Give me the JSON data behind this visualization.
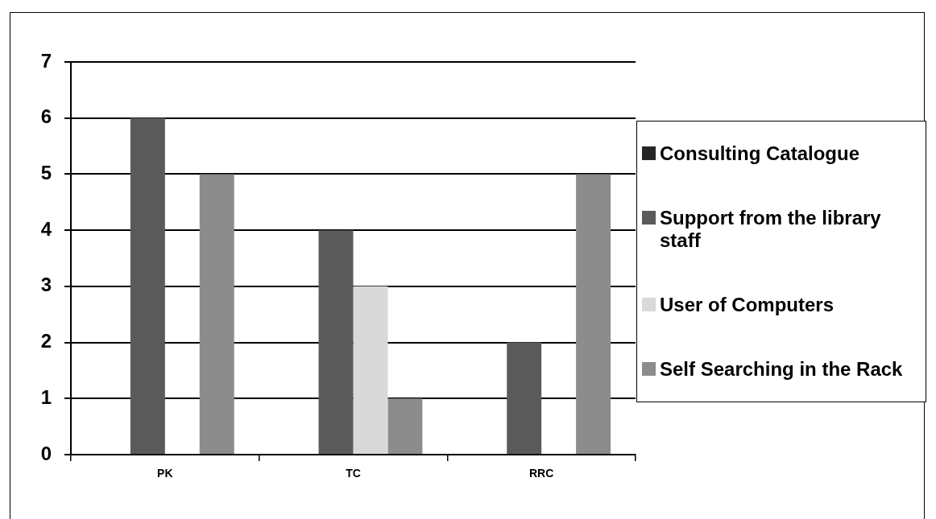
{
  "chart_data": {
    "type": "bar",
    "categories": [
      "PK",
      "TC",
      "RRC"
    ],
    "series": [
      {
        "name": "Consulting Catalogue",
        "color": "#262626",
        "values": [
          0,
          0,
          0
        ]
      },
      {
        "name": "Support from the library staff",
        "color": "#5a5a5a",
        "values": [
          6,
          4,
          2
        ]
      },
      {
        "name": "User of Computers",
        "color": "#d9d9d9",
        "values": [
          0,
          3,
          0
        ]
      },
      {
        "name": "Self Searching in the Rack",
        "color": "#8c8c8c",
        "values": [
          5,
          1,
          5
        ]
      }
    ],
    "ylim": [
      0,
      7
    ],
    "yticks": [
      0,
      1,
      2,
      3,
      4,
      5,
      6,
      7
    ],
    "grid": "y",
    "legend": "right"
  }
}
